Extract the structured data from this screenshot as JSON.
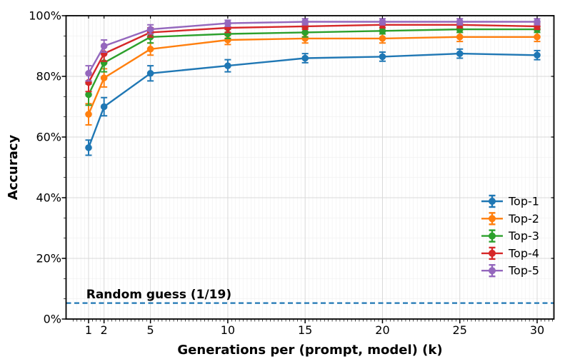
{
  "chart_data": {
    "type": "line",
    "title": "",
    "xlabel": "Generations per (prompt, model) (k)",
    "ylabel": "Accuracy",
    "xlim": [
      -0.45,
      31.1
    ],
    "ylim": [
      0,
      100
    ],
    "grid": true,
    "legend_position": "lower right",
    "x": [
      1,
      2,
      5,
      10,
      15,
      20,
      25,
      30
    ],
    "x_tick_labels": [
      "1",
      "2",
      "5",
      "10",
      "15",
      "20",
      "25",
      "30"
    ],
    "y_tick_values": [
      0,
      20,
      40,
      60,
      80,
      100
    ],
    "y_tick_labels": [
      "0%",
      "20%",
      "40%",
      "60%",
      "80%",
      "100%"
    ],
    "series": [
      {
        "name": "Top-1",
        "color": "#1f77b4",
        "values": [
          56.5,
          70.0,
          81.0,
          83.5,
          86.0,
          86.5,
          87.5,
          87.0
        ],
        "errors": [
          2.5,
          3.0,
          2.5,
          2.0,
          1.5,
          1.5,
          1.5,
          1.5
        ]
      },
      {
        "name": "Top-2",
        "color": "#ff7f0e",
        "values": [
          67.5,
          79.5,
          89.0,
          92.0,
          92.5,
          92.5,
          93.0,
          93.0
        ],
        "errors": [
          3.5,
          3.0,
          2.0,
          1.5,
          1.5,
          1.5,
          1.5,
          1.5
        ]
      },
      {
        "name": "Top-3",
        "color": "#2ca02c",
        "values": [
          74.0,
          84.5,
          93.0,
          94.0,
          94.5,
          95.0,
          95.5,
          95.5
        ],
        "errors": [
          3.5,
          3.0,
          2.0,
          1.5,
          1.5,
          1.0,
          1.0,
          1.0
        ]
      },
      {
        "name": "Top-4",
        "color": "#d62728",
        "values": [
          78.0,
          87.5,
          94.5,
          96.0,
          96.5,
          97.0,
          97.0,
          96.5
        ],
        "errors": [
          3.0,
          2.5,
          1.5,
          1.5,
          1.0,
          1.0,
          1.0,
          1.0
        ]
      },
      {
        "name": "Top-5",
        "color": "#9467bd",
        "values": [
          81.0,
          90.0,
          95.5,
          97.5,
          98.0,
          98.0,
          98.0,
          98.0
        ],
        "errors": [
          2.5,
          2.0,
          1.5,
          1.0,
          1.0,
          1.0,
          1.0,
          1.0
        ]
      }
    ],
    "annotation": {
      "label": "Random guess (1/19)",
      "value": 5.26,
      "line_style": "dashed",
      "color": "#1f77b4"
    },
    "colors": {
      "major_grid": "#d8d8d8",
      "minor_grid": "#efefef",
      "spine": "#000000",
      "background": "#ffffff"
    }
  }
}
